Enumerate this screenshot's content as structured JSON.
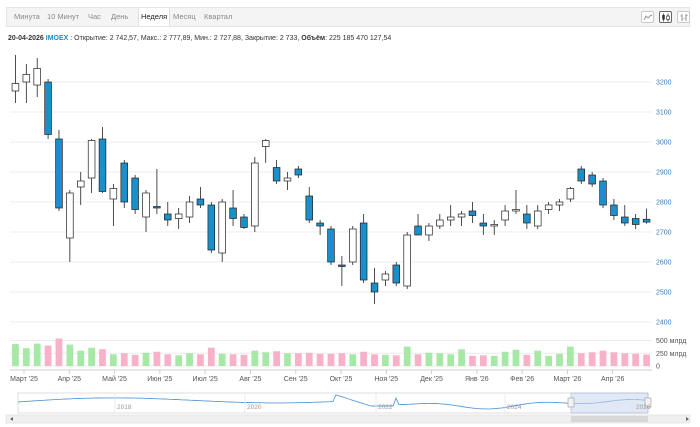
{
  "tabs": [
    {
      "label": "Минута",
      "active": false
    },
    {
      "label": "10 Минут",
      "active": false
    },
    {
      "label": "Час",
      "active": false
    },
    {
      "label": "День",
      "active": false
    },
    {
      "label": "Неделя",
      "active": true
    },
    {
      "label": "Месяц",
      "active": false
    },
    {
      "label": "Квартал",
      "active": false
    }
  ],
  "tools": [
    "line-chart-icon",
    "candlestick-icon",
    "bar-chart-icon"
  ],
  "info": {
    "date": "20-04-2026",
    "ticker": "IMOEX",
    "text": " : Открытие: 2 742,57, Макс.: 2 777,89, Мин.: 2 727,88, Закрытие: 2 733, ",
    "volume_label": "Объём",
    "volume_value": ": 225 185 470 127,54"
  },
  "colors": {
    "up": "#ffffff",
    "down": "#1b8fc9",
    "vol_up": "#a6e8a6",
    "vol_down": "#f7b1c8",
    "navigator": "#5b9bd5",
    "axis_blue": "#3a7fb8"
  },
  "chart_data": {
    "type": "candlestick",
    "ylim": [
      2380,
      3280
    ],
    "yticks": [
      2400,
      2500,
      2600,
      2700,
      2800,
      2900,
      3000,
      3100,
      3200
    ],
    "volume_ylim": [
      0,
      550
    ],
    "volume_ticks": [
      {
        "value": 500,
        "label": "500 млрд"
      },
      {
        "value": 250,
        "label": "250 млрд"
      },
      {
        "value": 0,
        "label": "0"
      }
    ],
    "xticks": [
      "Март '25",
      "Апр '25",
      "Май '25",
      "Июн '25",
      "Июл '25",
      "Авг '25",
      "Сен '25",
      "Окт '25",
      "Ноя '25",
      "Дек '25",
      "Янв '26",
      "Фев '26",
      "Март '26",
      "Апр '26"
    ],
    "navigator_labels": [
      "2018",
      "2020",
      "2022",
      "2024",
      "2026"
    ],
    "candles": [
      {
        "o": 3170,
        "h": 3290,
        "l": 3130,
        "c": 3195,
        "v": 430
      },
      {
        "o": 3200,
        "h": 3260,
        "l": 3130,
        "c": 3225,
        "v": 350
      },
      {
        "o": 3190,
        "h": 3280,
        "l": 3150,
        "c": 3245,
        "v": 440
      },
      {
        "o": 3200,
        "h": 3210,
        "l": 3010,
        "c": 3025,
        "v": 400
      },
      {
        "o": 3010,
        "h": 3040,
        "l": 2770,
        "c": 2780,
        "v": 540
      },
      {
        "o": 2680,
        "h": 2840,
        "l": 2600,
        "c": 2830,
        "v": 420
      },
      {
        "o": 2850,
        "h": 2900,
        "l": 2790,
        "c": 2870,
        "v": 300
      },
      {
        "o": 2880,
        "h": 3010,
        "l": 2830,
        "c": 3005,
        "v": 360
      },
      {
        "o": 3010,
        "h": 3050,
        "l": 2830,
        "c": 2835,
        "v": 330
      },
      {
        "o": 2810,
        "h": 2860,
        "l": 2720,
        "c": 2845,
        "v": 230
      },
      {
        "o": 2930,
        "h": 2940,
        "l": 2780,
        "c": 2800,
        "v": 250
      },
      {
        "o": 2880,
        "h": 2890,
        "l": 2760,
        "c": 2775,
        "v": 220
      },
      {
        "o": 2750,
        "h": 2840,
        "l": 2700,
        "c": 2830,
        "v": 260
      },
      {
        "o": 2785,
        "h": 2910,
        "l": 2760,
        "c": 2780,
        "v": 280
      },
      {
        "o": 2760,
        "h": 2800,
        "l": 2720,
        "c": 2740,
        "v": 230
      },
      {
        "o": 2745,
        "h": 2780,
        "l": 2710,
        "c": 2760,
        "v": 210
      },
      {
        "o": 2750,
        "h": 2820,
        "l": 2730,
        "c": 2800,
        "v": 250
      },
      {
        "o": 2810,
        "h": 2850,
        "l": 2780,
        "c": 2790,
        "v": 230
      },
      {
        "o": 2790,
        "h": 2800,
        "l": 2630,
        "c": 2640,
        "v": 360
      },
      {
        "o": 2630,
        "h": 2810,
        "l": 2600,
        "c": 2800,
        "v": 240
      },
      {
        "o": 2780,
        "h": 2840,
        "l": 2720,
        "c": 2745,
        "v": 230
      },
      {
        "o": 2750,
        "h": 2760,
        "l": 2710,
        "c": 2715,
        "v": 220
      },
      {
        "o": 2720,
        "h": 2950,
        "l": 2700,
        "c": 2930,
        "v": 300
      },
      {
        "o": 2985,
        "h": 3010,
        "l": 2930,
        "c": 3005,
        "v": 270
      },
      {
        "o": 2915,
        "h": 2940,
        "l": 2860,
        "c": 2870,
        "v": 290
      },
      {
        "o": 2870,
        "h": 2900,
        "l": 2840,
        "c": 2880,
        "v": 250
      },
      {
        "o": 2910,
        "h": 2920,
        "l": 2880,
        "c": 2890,
        "v": 250
      },
      {
        "o": 2820,
        "h": 2850,
        "l": 2730,
        "c": 2740,
        "v": 260
      },
      {
        "o": 2730,
        "h": 2740,
        "l": 2690,
        "c": 2720,
        "v": 240
      },
      {
        "o": 2710,
        "h": 2720,
        "l": 2590,
        "c": 2600,
        "v": 240
      },
      {
        "o": 2590,
        "h": 2620,
        "l": 2520,
        "c": 2585,
        "v": 250
      },
      {
        "o": 2600,
        "h": 2720,
        "l": 2590,
        "c": 2710,
        "v": 230
      },
      {
        "o": 2730,
        "h": 2760,
        "l": 2530,
        "c": 2540,
        "v": 280
      },
      {
        "o": 2530,
        "h": 2580,
        "l": 2460,
        "c": 2500,
        "v": 230
      },
      {
        "o": 2540,
        "h": 2570,
        "l": 2520,
        "c": 2560,
        "v": 220
      },
      {
        "o": 2590,
        "h": 2600,
        "l": 2520,
        "c": 2530,
        "v": 210
      },
      {
        "o": 2520,
        "h": 2700,
        "l": 2510,
        "c": 2690,
        "v": 380
      },
      {
        "o": 2720,
        "h": 2760,
        "l": 2690,
        "c": 2690,
        "v": 230
      },
      {
        "o": 2690,
        "h": 2730,
        "l": 2670,
        "c": 2720,
        "v": 260
      },
      {
        "o": 2720,
        "h": 2760,
        "l": 2710,
        "c": 2740,
        "v": 250
      },
      {
        "o": 2740,
        "h": 2790,
        "l": 2720,
        "c": 2750,
        "v": 230
      },
      {
        "o": 2750,
        "h": 2770,
        "l": 2720,
        "c": 2760,
        "v": 330
      },
      {
        "o": 2770,
        "h": 2800,
        "l": 2730,
        "c": 2755,
        "v": 200
      },
      {
        "o": 2730,
        "h": 2760,
        "l": 2690,
        "c": 2720,
        "v": 210
      },
      {
        "o": 2720,
        "h": 2740,
        "l": 2690,
        "c": 2725,
        "v": 200
      },
      {
        "o": 2740,
        "h": 2790,
        "l": 2720,
        "c": 2770,
        "v": 280
      },
      {
        "o": 2770,
        "h": 2840,
        "l": 2760,
        "c": 2775,
        "v": 320
      },
      {
        "o": 2760,
        "h": 2790,
        "l": 2710,
        "c": 2730,
        "v": 220
      },
      {
        "o": 2720,
        "h": 2790,
        "l": 2710,
        "c": 2770,
        "v": 300
      },
      {
        "o": 2775,
        "h": 2800,
        "l": 2760,
        "c": 2790,
        "v": 200
      },
      {
        "o": 2790,
        "h": 2810,
        "l": 2770,
        "c": 2800,
        "v": 240
      },
      {
        "o": 2810,
        "h": 2850,
        "l": 2800,
        "c": 2845,
        "v": 380
      },
      {
        "o": 2910,
        "h": 2920,
        "l": 2860,
        "c": 2870,
        "v": 250
      },
      {
        "o": 2890,
        "h": 2900,
        "l": 2850,
        "c": 2860,
        "v": 270
      },
      {
        "o": 2870,
        "h": 2880,
        "l": 2780,
        "c": 2790,
        "v": 300
      },
      {
        "o": 2790,
        "h": 2810,
        "l": 2740,
        "c": 2755,
        "v": 270
      },
      {
        "o": 2750,
        "h": 2790,
        "l": 2720,
        "c": 2730,
        "v": 250
      },
      {
        "o": 2745,
        "h": 2760,
        "l": 2710,
        "c": 2725,
        "v": 240
      },
      {
        "o": 2742.57,
        "h": 2777.89,
        "l": 2727.88,
        "c": 2733,
        "v": 225
      }
    ]
  }
}
